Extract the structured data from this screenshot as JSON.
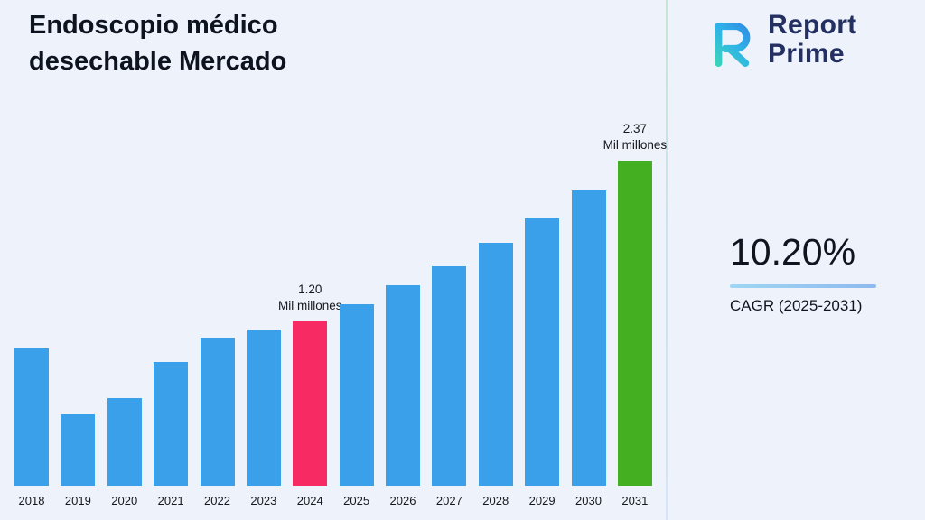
{
  "title": {
    "line1": "Endoscopio médico",
    "line2": "desechable Mercado"
  },
  "logo": {
    "line1": "Report",
    "line2": "Prime",
    "brand_navy": "#233061",
    "gradient_start": "#3fe3a4",
    "gradient_end": "#2f6fe0"
  },
  "stats": {
    "cagr_value": "10.20%",
    "cagr_label": "CAGR (2025-2031)"
  },
  "chart_data": {
    "type": "bar",
    "categories": [
      "2018",
      "2019",
      "2020",
      "2021",
      "2022",
      "2023",
      "2024",
      "2025",
      "2026",
      "2027",
      "2028",
      "2029",
      "2030",
      "2031"
    ],
    "values": [
      1.0,
      0.52,
      0.64,
      0.9,
      1.08,
      1.14,
      1.2,
      1.32,
      1.46,
      1.6,
      1.77,
      1.95,
      2.15,
      2.37
    ],
    "unit": "Mil millones",
    "title": "Endoscopio médico desechable Mercado",
    "xlabel": "",
    "ylabel": "",
    "ylim": [
      0,
      2.5
    ],
    "grid": false,
    "legend": false,
    "annotations": [
      {
        "year": "2024",
        "value": "1.20",
        "unit": "Mil millones"
      },
      {
        "year": "2031",
        "value": "2.37",
        "unit": "Mil millones"
      }
    ],
    "colors": {
      "default": "#3aa0e9",
      "by_year": {
        "2024": "#f72a63",
        "2031": "#44af20"
      }
    }
  }
}
